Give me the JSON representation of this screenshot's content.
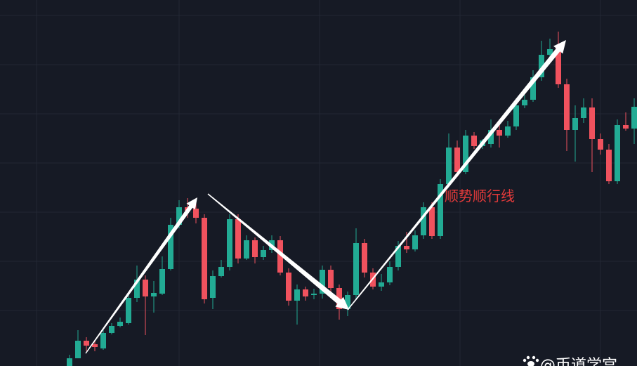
{
  "chart_data": {
    "type": "candlestick",
    "up_color": "#22ab94",
    "down_color": "#f0525e",
    "ylim": [
      0,
      521
    ],
    "open": [
      0,
      11,
      36,
      31,
      25,
      47,
      57,
      61,
      97,
      123,
      99,
      103,
      138,
      201,
      226,
      224,
      211,
      97,
      128,
      141,
      209,
      153,
      179,
      155,
      165,
      179,
      133,
      93,
      109,
      101,
      103,
      137,
      111,
      81,
      101,
      175,
      133,
      113,
      119,
      141,
      171,
      166,
      186,
      226,
      185,
      259,
      311,
      276,
      328,
      313,
      316,
      336,
      328,
      341,
      371,
      379,
      411,
      443,
      453,
      401,
      336,
      353,
      368,
      323,
      308,
      263,
      343,
      338
    ],
    "high": [
      16,
      51,
      41,
      36,
      51,
      61,
      69,
      103,
      143,
      129,
      121,
      156,
      211,
      236,
      239,
      233,
      216,
      136,
      151,
      216,
      216,
      186,
      183,
      171,
      186,
      185,
      139,
      116,
      113,
      110,
      143,
      143,
      116,
      106,
      196,
      181,
      139,
      131,
      149,
      178,
      191,
      193,
      233,
      233,
      266,
      331,
      321,
      336,
      333,
      323,
      351,
      351,
      349,
      381,
      386,
      421,
      463,
      466,
      476,
      409,
      371,
      381,
      381,
      331,
      316,
      351,
      361,
      381
    ],
    "low": [
      0,
      11,
      21,
      21,
      23,
      45,
      55,
      59,
      91,
      44,
      76,
      101,
      136,
      196,
      211,
      203,
      89,
      81,
      126,
      136,
      146,
      151,
      146,
      151,
      161,
      129,
      86,
      59,
      93,
      95,
      96,
      103,
      66,
      71,
      96,
      126,
      109,
      107,
      115,
      136,
      161,
      163,
      181,
      181,
      181,
      256,
      269,
      273,
      309,
      309,
      311,
      311,
      325,
      336,
      367,
      376,
      406,
      439,
      396,
      306,
      291,
      346,
      276,
      301,
      259,
      259,
      335,
      316
    ],
    "close": [
      11,
      36,
      29,
      27,
      47,
      57,
      63,
      97,
      123,
      99,
      104,
      138,
      201,
      226,
      221,
      211,
      95,
      128,
      141,
      209,
      153,
      179,
      155,
      165,
      179,
      133,
      93,
      109,
      99,
      103,
      137,
      111,
      81,
      101,
      175,
      133,
      113,
      119,
      141,
      171,
      166,
      186,
      226,
      185,
      259,
      311,
      276,
      328,
      313,
      321,
      336,
      328,
      341,
      371,
      379,
      411,
      443,
      451,
      401,
      336,
      353,
      368,
      323,
      308,
      263,
      343,
      338,
      369
    ],
    "annotation": "顺势顺行线",
    "watermark": "@币道学宫"
  }
}
